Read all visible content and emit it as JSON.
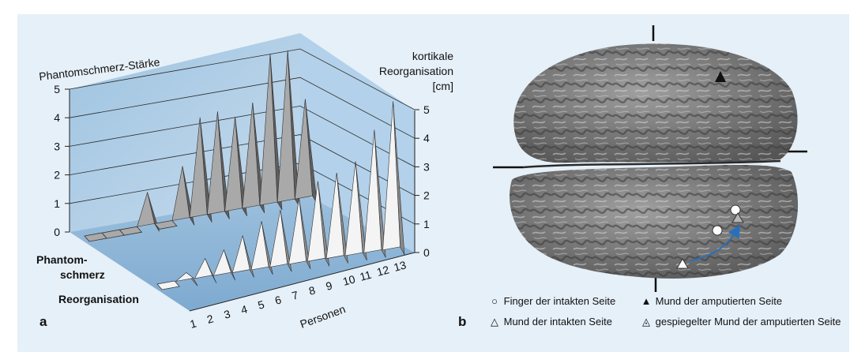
{
  "panels": {
    "a": "a",
    "b": "b"
  },
  "chart_data": {
    "type": "bar",
    "variant": "3d-pyramid",
    "x": [
      1,
      2,
      3,
      4,
      5,
      6,
      7,
      8,
      9,
      10,
      11,
      12,
      13
    ],
    "xlabel": "Personen",
    "series": [
      {
        "name": "Phantom-schmerz",
        "label_lines": [
          "Phantom-",
          "schmerz"
        ],
        "values": [
          0,
          0,
          0,
          1.2,
          0,
          1.9,
          3.5,
          3.6,
          3.3,
          3.7,
          5.3,
          5.3,
          3.5
        ],
        "color": "#a9a9a9"
      },
      {
        "name": "Reorganisation",
        "label_lines": [
          "Reorganisation"
        ],
        "values": [
          0,
          0.3,
          0.7,
          0.9,
          1.3,
          1.7,
          2.0,
          2.3,
          2.8,
          3.0,
          3.3,
          4.3,
          5.2
        ],
        "color": "#f2f2f2"
      }
    ],
    "y_left": {
      "label": "Phantomschmerz-Stärke",
      "ticks": [
        "0",
        "1",
        "2",
        "3",
        "4",
        "5"
      ],
      "range": [
        0,
        5
      ]
    },
    "y_right": {
      "label_lines": [
        "kortikale",
        "Reorganisation",
        "[cm]"
      ],
      "ticks": [
        "0",
        "1",
        "2",
        "3",
        "4",
        "5"
      ],
      "range": [
        0,
        5
      ]
    },
    "grid": true
  },
  "brain_legend": [
    {
      "symbol": "○",
      "text": "Finger der intakten Seite"
    },
    {
      "symbol": "▲",
      "text": "Mund der amputierten Seite"
    },
    {
      "symbol": "△",
      "text": "Mund der intakten Seite"
    },
    {
      "symbol": "◬",
      "text": "gespiegelter Mund der amputierten Seite"
    }
  ],
  "colors": {
    "background": "#e6f0f8",
    "wall": "#a8c8e2",
    "floor": "#8fb6d6",
    "arrow": "#2a70b8",
    "brain": "#8a8a8a"
  }
}
